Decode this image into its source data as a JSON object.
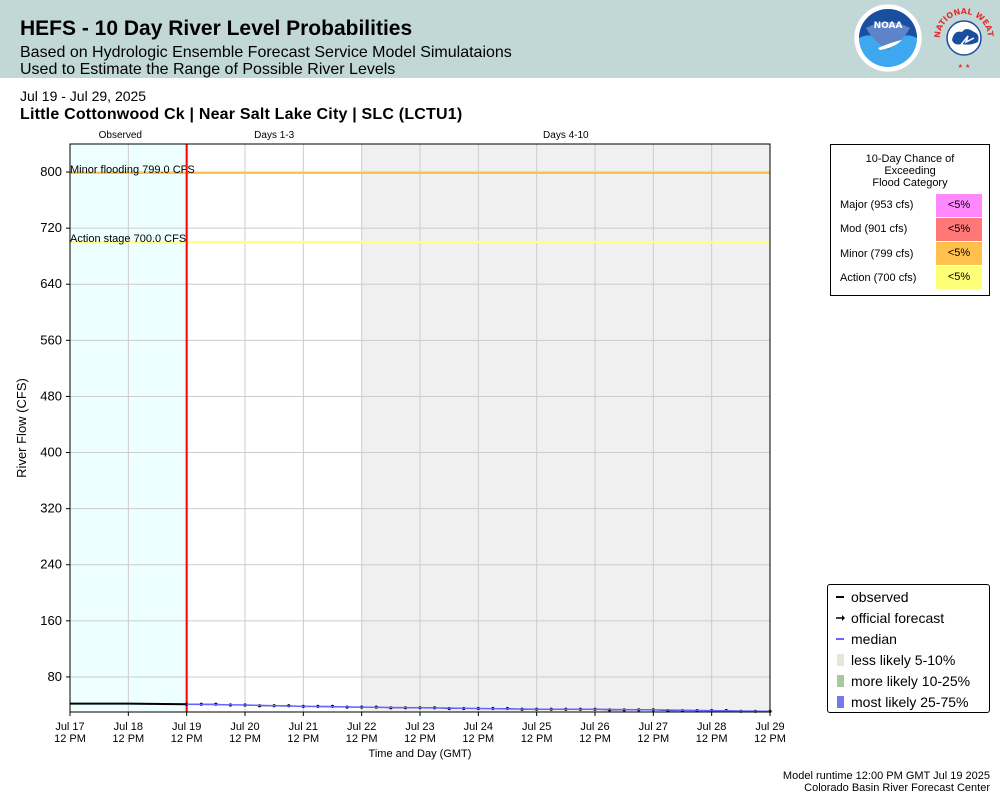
{
  "header": {
    "title": "HEFS - 10 Day River Level Probabilities",
    "subtitle_line1": "Based on Hydrologic Ensemble Forecast Service Model Simulataions",
    "subtitle_line2": "Used to Estimate the Range of Possible River Levels",
    "noaa_logo_text": "NOAA",
    "nws_logo_text": "NATIONAL WEATHER SERVICE"
  },
  "date_range": "Jul 19 - Jul 29, 2025",
  "gauge_title": "Little Cottonwood Ck | Near Salt Lake City | SLC (LCTU1)",
  "chart_data": {
    "type": "line",
    "xlabel": "Time and Day (GMT)",
    "ylabel": "River Flow (CFS)",
    "ylim": [
      30,
      840
    ],
    "yticks": [
      80,
      160,
      240,
      320,
      400,
      480,
      560,
      640,
      720,
      800
    ],
    "xlim_day": [
      17,
      29
    ],
    "xticks": [
      {
        "day": 17,
        "line1": "Jul 17",
        "line2": "12 PM"
      },
      {
        "day": 18,
        "line1": "Jul 18",
        "line2": "12 PM"
      },
      {
        "day": 19,
        "line1": "Jul 19",
        "line2": "12 PM"
      },
      {
        "day": 20,
        "line1": "Jul 20",
        "line2": "12 PM"
      },
      {
        "day": 21,
        "line1": "Jul 21",
        "line2": "12 PM"
      },
      {
        "day": 22,
        "line1": "Jul 22",
        "line2": "12 PM"
      },
      {
        "day": 23,
        "line1": "Jul 23",
        "line2": "12 PM"
      },
      {
        "day": 24,
        "line1": "Jul 24",
        "line2": "12 PM"
      },
      {
        "day": 25,
        "line1": "Jul 25",
        "line2": "12 PM"
      },
      {
        "day": 26,
        "line1": "Jul 26",
        "line2": "12 PM"
      },
      {
        "day": 27,
        "line1": "Jul 27",
        "line2": "12 PM"
      },
      {
        "day": 28,
        "line1": "Jul 28",
        "line2": "12 PM"
      },
      {
        "day": 29,
        "line1": "Jul 29",
        "line2": "12 PM"
      }
    ],
    "grid": true,
    "forecast_start_day": 19,
    "regions": [
      {
        "label": "Observed",
        "start_day": 17,
        "end_day": 19,
        "color": "#eeffff"
      },
      {
        "label": "Days 1-3",
        "start_day": 19,
        "end_day": 22,
        "color": "#ffffff"
      },
      {
        "label": "Days 4-10",
        "start_day": 22,
        "end_day": 29,
        "color": "#f0f0f0"
      }
    ],
    "thresholds": [
      {
        "label": "Minor flooding 799.0 CFS",
        "value": 799,
        "color": "#ffc04c"
      },
      {
        "label": "Action stage 700.0 CFS",
        "value": 700,
        "color": "#ffff88"
      }
    ],
    "series": [
      {
        "name": "observed",
        "color": "#000000",
        "x": [
          17,
          18,
          19
        ],
        "y": [
          42,
          42,
          41
        ]
      },
      {
        "name": "official forecast",
        "color": "#000000",
        "x": [
          19,
          19.25,
          19.5,
          19.75,
          20,
          20.25,
          20.5,
          20.75,
          21,
          21.25,
          21.5,
          21.75,
          22,
          22.25,
          22.5,
          22.75,
          23,
          23.25,
          23.5,
          23.75,
          24,
          24.25,
          24.5,
          24.75,
          25,
          25.25,
          25.5,
          25.75,
          26,
          26.25,
          26.5,
          26.75,
          27,
          27.25,
          27.5,
          27.75,
          28,
          28.25,
          28.5,
          28.75,
          29
        ],
        "y": [
          41,
          41,
          41,
          40,
          40,
          39,
          39,
          39,
          38,
          38,
          38,
          37,
          37,
          37,
          36,
          36,
          36,
          36,
          35,
          35,
          35,
          35,
          35,
          34,
          34,
          34,
          34,
          34,
          34,
          33,
          33,
          33,
          33,
          32,
          32,
          32,
          32,
          32,
          31,
          31,
          31
        ]
      },
      {
        "name": "median",
        "color": "#6666ff",
        "x": [
          19,
          20,
          21,
          22,
          23,
          24,
          25,
          26,
          27,
          28,
          29
        ],
        "y": [
          41,
          40,
          38,
          37,
          36,
          35,
          34,
          34,
          33,
          32,
          31
        ]
      },
      {
        "name": "less likely 5-10%",
        "color": "#e8e4d8",
        "x": [],
        "y": []
      },
      {
        "name": "more likely 10-25%",
        "color": "#a8c8a0",
        "x": [],
        "y": []
      },
      {
        "name": "most likely 25-75%",
        "color": "#7777ee",
        "x": [],
        "y": []
      }
    ]
  },
  "categories": {
    "title_line1": "10-Day Chance of",
    "title_line2": "Exceeding",
    "title_line3": "Flood Category",
    "items": [
      {
        "label": "Major (953 cfs)",
        "value": "<5%",
        "color": "#ff88ff"
      },
      {
        "label": "Mod (901 cfs)",
        "value": "<5%",
        "color": "#ff7777"
      },
      {
        "label": "Minor (799 cfs)",
        "value": "<5%",
        "color": "#ffc04c"
      },
      {
        "label": "Action (700 cfs)",
        "value": "<5%",
        "color": "#ffff77"
      }
    ]
  },
  "legend": [
    {
      "label": "observed",
      "type": "line",
      "color": "#000000"
    },
    {
      "label": "official forecast",
      "type": "arrow",
      "color": "#000000"
    },
    {
      "label": "median",
      "type": "line",
      "color": "#6666ff"
    },
    {
      "label": "less likely 5-10%",
      "type": "box",
      "color": "#e8e4d8"
    },
    {
      "label": "more likely 10-25%",
      "type": "box",
      "color": "#a8c8a0"
    },
    {
      "label": "most likely 25-75%",
      "type": "box",
      "color": "#7777ee"
    }
  ],
  "footer": {
    "runtime": "Model runtime 12:00 PM GMT Jul 19 2025",
    "center": "Colorado Basin River Forecast Center"
  }
}
